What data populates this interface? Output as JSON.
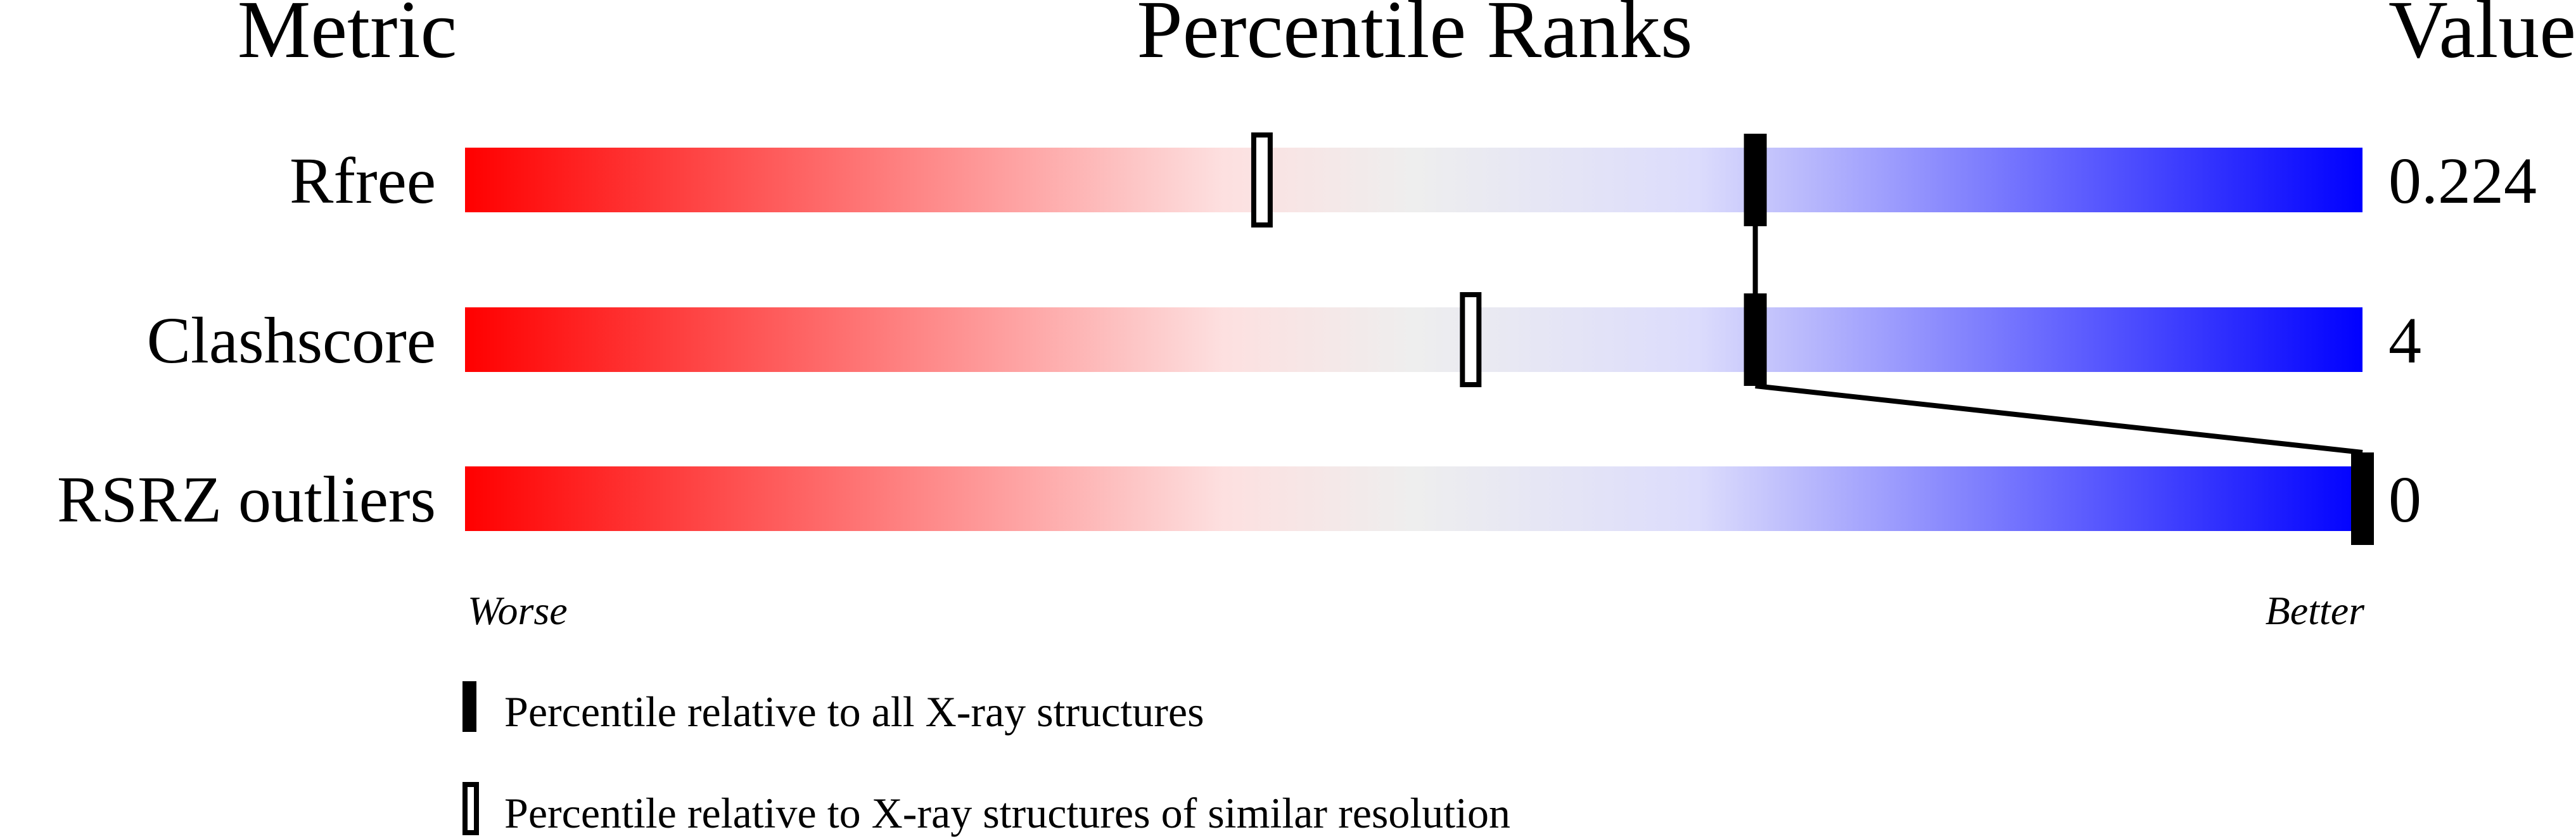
{
  "chart_data": {
    "type": "bar",
    "title": "Percentile Ranks",
    "header_metric": "Metric",
    "header_value": "Value",
    "xlim": [
      0,
      100
    ],
    "axis_left_label": "Worse",
    "axis_right_label": "Better",
    "gradient_colors": [
      "#ff0000",
      "#fde0e0",
      "#eeeeee",
      "#dcdcfc",
      "#0000ff"
    ],
    "rows": [
      {
        "metric": "Rfree",
        "value": "0.224",
        "percentile_all": 68,
        "percentile_similar": 42
      },
      {
        "metric": "Clashscore",
        "value": "4",
        "percentile_all": 68,
        "percentile_similar": 53
      },
      {
        "metric": "RSRZ outliers",
        "value": "0",
        "percentile_all": 100,
        "percentile_similar": null
      }
    ],
    "legend": [
      {
        "marker": "filled",
        "label": "Percentile relative to all X-ray structures"
      },
      {
        "marker": "open",
        "label": "Percentile relative to X-ray structures of similar resolution"
      }
    ]
  }
}
